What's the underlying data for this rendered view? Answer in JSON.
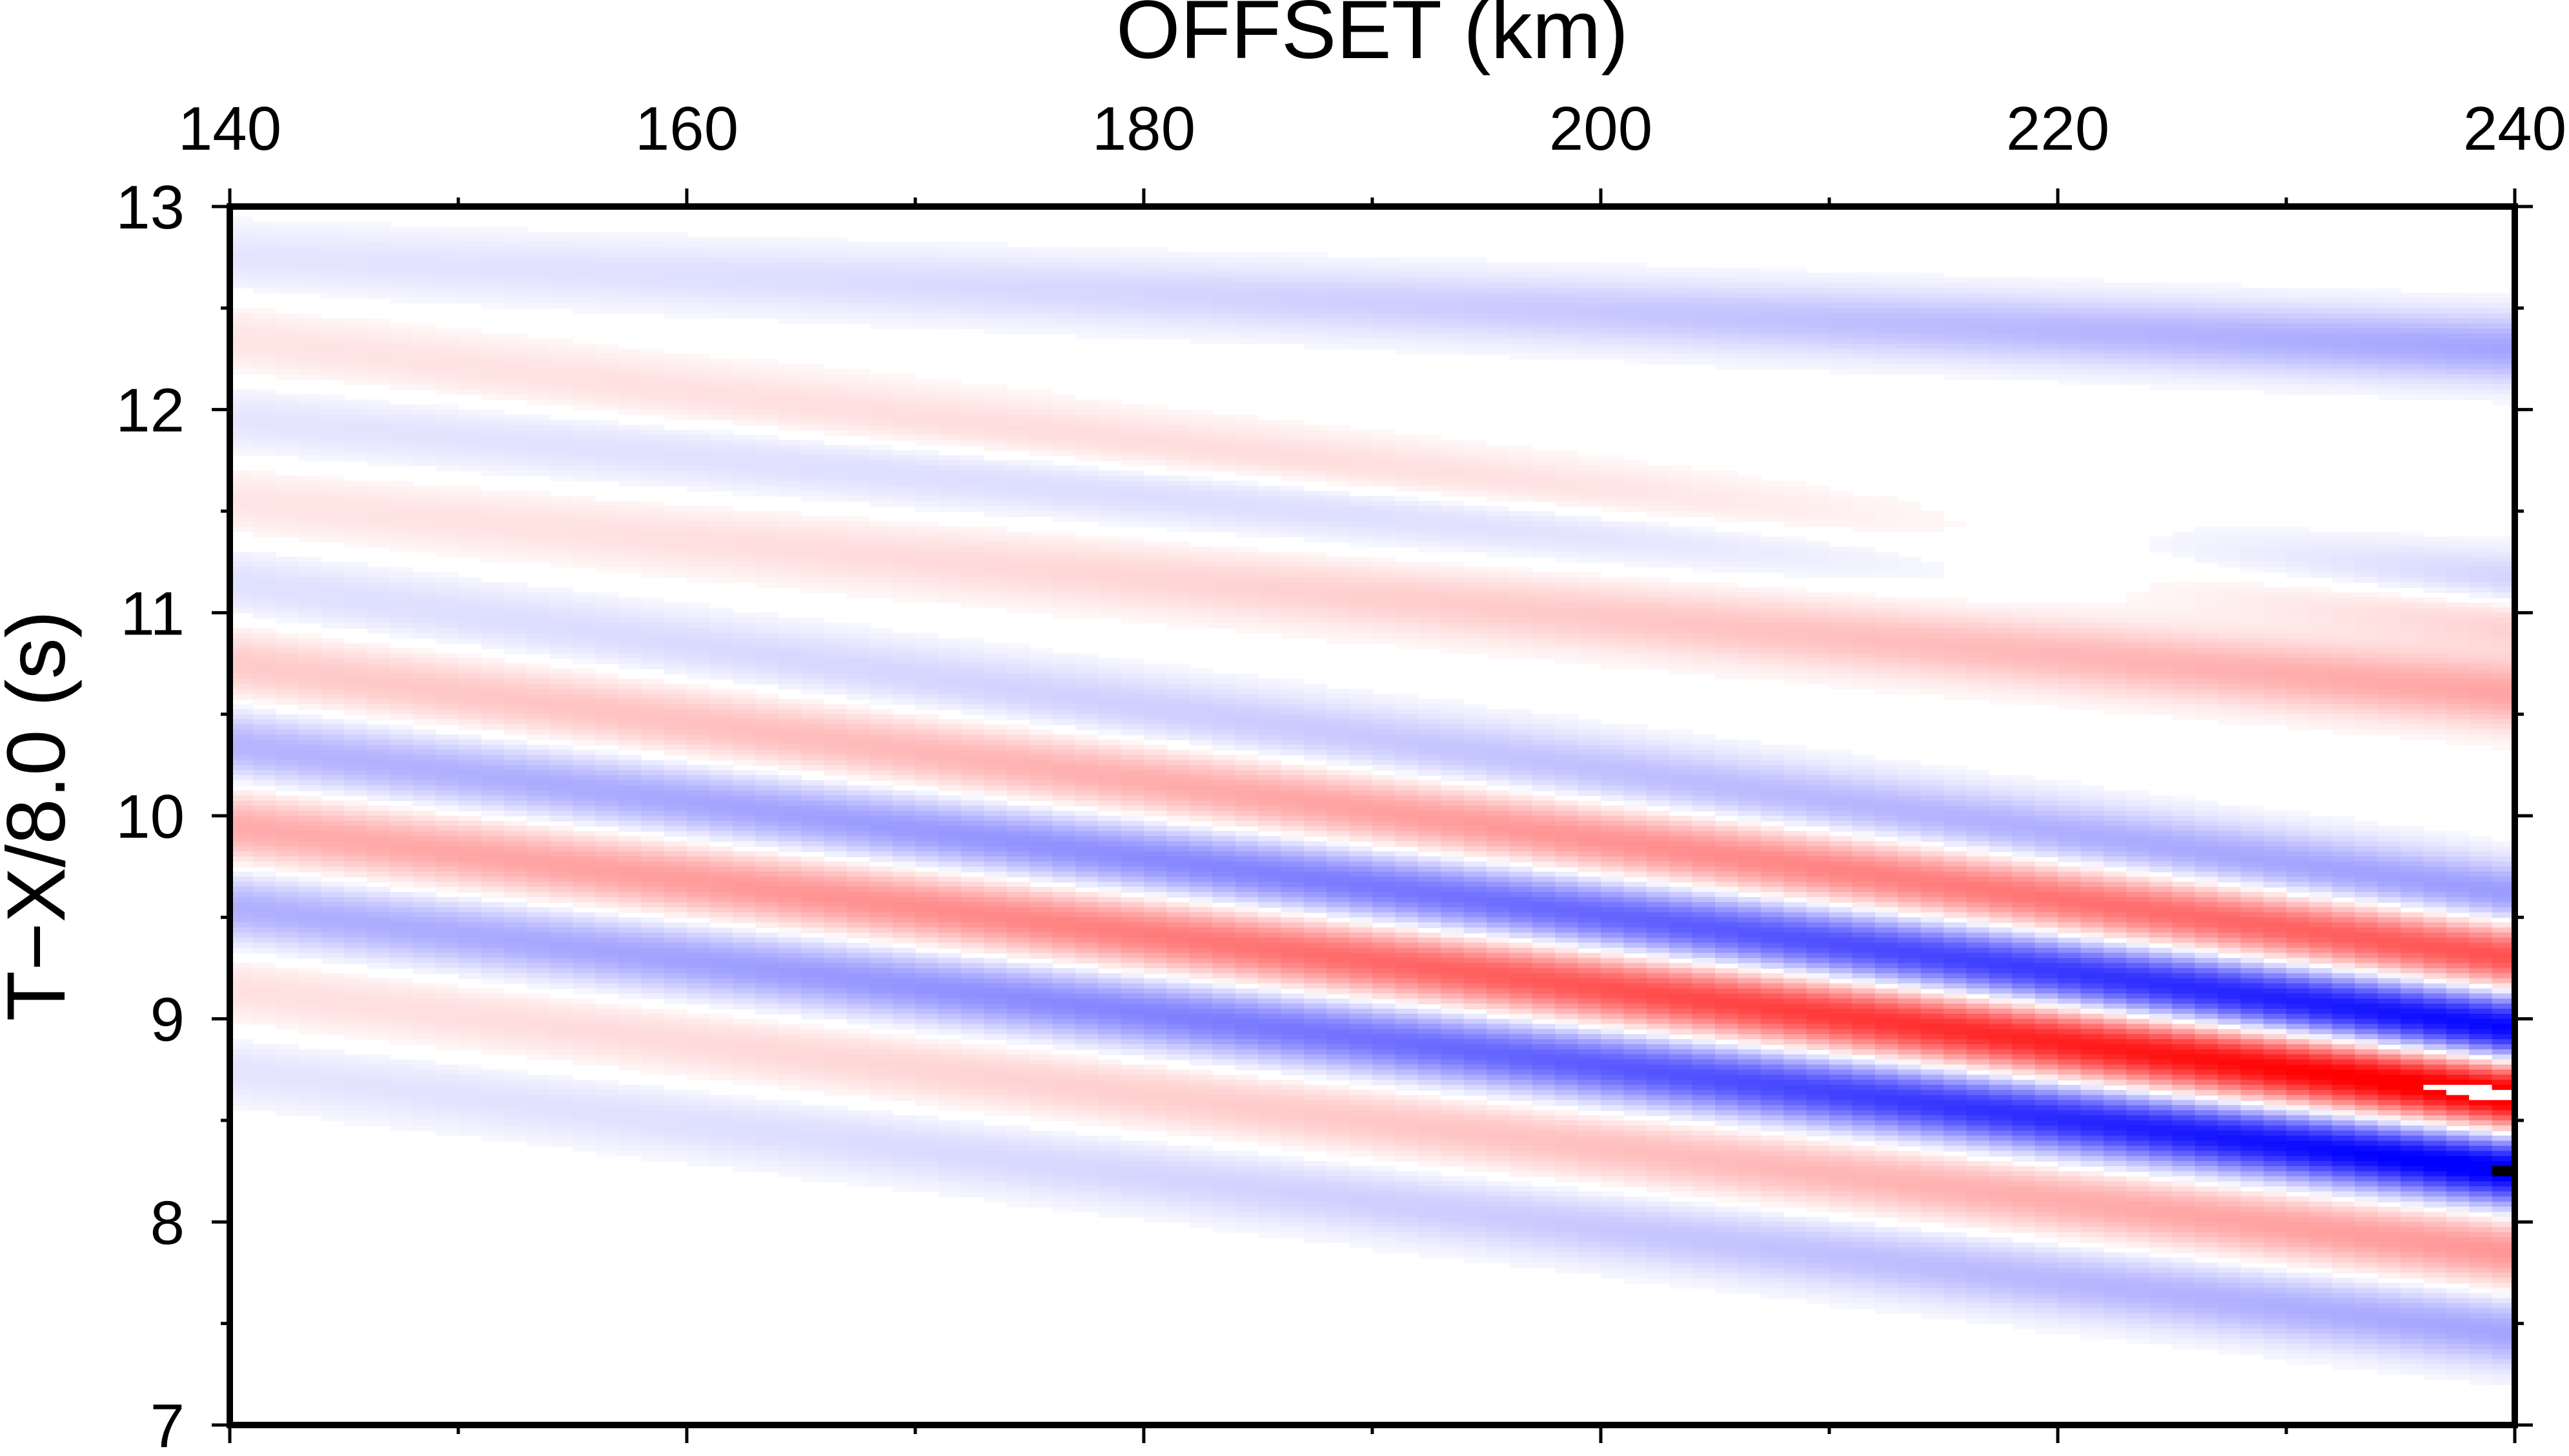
{
  "chart_data": {
    "type": "heatmap",
    "title": "",
    "xlabel": "OFFSET (km)",
    "ylabel": "T−X/8.0 (s)",
    "xlim": [
      140,
      240
    ],
    "ylim": [
      7,
      13
    ],
    "x_axis_position": "top",
    "x_ticks": [
      140,
      160,
      180,
      200,
      220,
      240
    ],
    "y_ticks": [
      7,
      8,
      9,
      10,
      11,
      12,
      13
    ],
    "x_minor_step": 10,
    "y_minor_step": 0.5,
    "grid": false,
    "legend": "none",
    "colormap": {
      "negative": "#0000ff",
      "zero": "#ffffff",
      "positive": "#ff0000",
      "clip_low": "#000000",
      "clip_high": "#ffffff"
    },
    "description_of_field": "record-section wiggle amplitude, red positive, blue negative",
    "phases": [
      {
        "t0": 9.55,
        "t1": 8.25,
        "amp": -0.9
      },
      {
        "t0": 9.95,
        "t1": 8.62,
        "amp": 0.95
      },
      {
        "t0": 10.35,
        "t1": 8.95,
        "amp": -0.85
      },
      {
        "t0": 10.75,
        "t1": 9.3,
        "amp": 0.6
      },
      {
        "t0": 9.15,
        "t1": 7.85,
        "amp": 0.35
      },
      {
        "t0": 8.75,
        "t1": 7.45,
        "amp": -0.3
      },
      {
        "t0": 11.15,
        "t1": 9.6,
        "amp": -0.35
      },
      {
        "t0": 11.55,
        "t1": 10.6,
        "amp": 0.3
      },
      {
        "t0": 11.95,
        "t1": 11.1,
        "amp": -0.3
      },
      {
        "t0": 12.35,
        "t1": 11.0,
        "amp": 0.3
      },
      {
        "t0": 12.75,
        "t1": 12.3,
        "amp": -0.3
      }
    ]
  }
}
